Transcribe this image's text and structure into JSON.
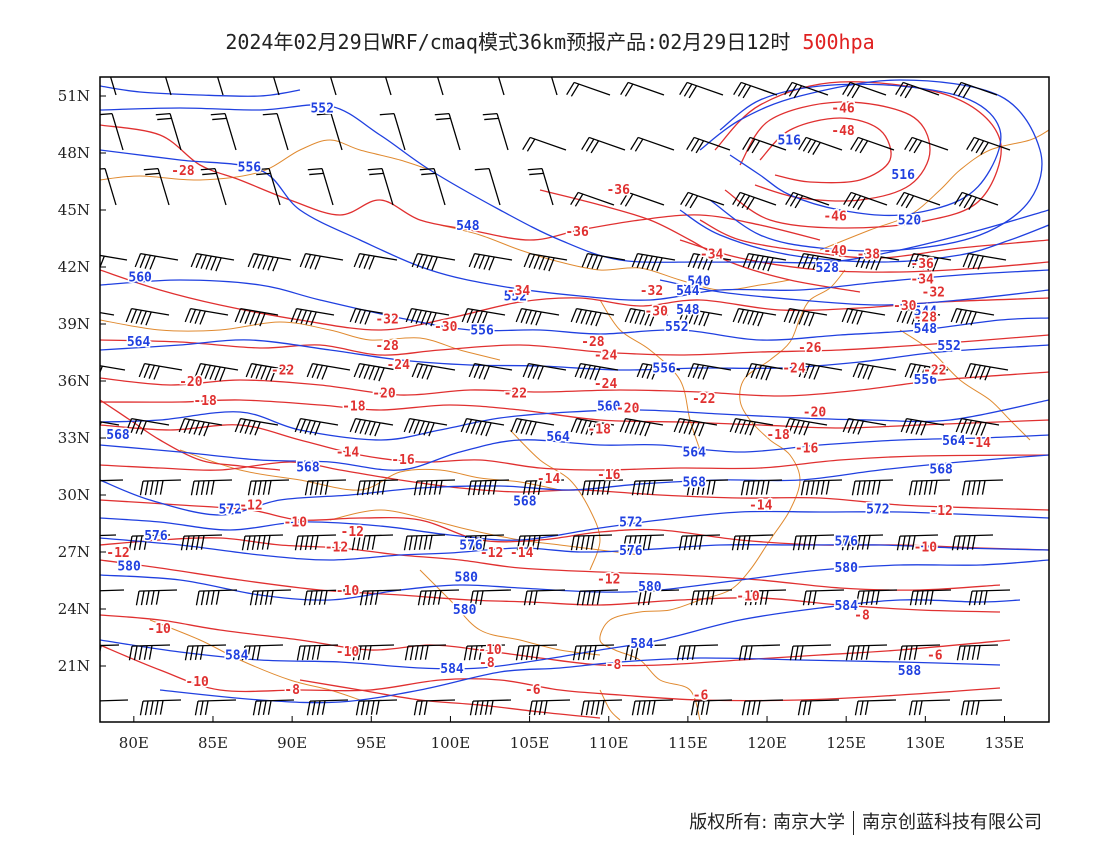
{
  "title": {
    "main": "2024年02月29日WRF/cmaq模式36km预报产品:02月29日12时",
    "level": "500hpa"
  },
  "colors": {
    "temperature_contour": "#e03030",
    "height_contour": "#2040e0",
    "coastline": "#e08a30",
    "wind_barb": "#000000"
  },
  "map": {
    "lon_ticks": [
      "80E",
      "85E",
      "90E",
      "95E",
      "100E",
      "105E",
      "110E",
      "115E",
      "120E",
      "125E",
      "130E",
      "135E"
    ],
    "lat_ticks": [
      "51N",
      "48N",
      "45N",
      "42N",
      "39N",
      "36N",
      "33N",
      "30N",
      "27N",
      "24N",
      "21N"
    ]
  },
  "height_labels": [
    {
      "text": "552",
      "lon": 91.9,
      "lat": 50.4
    },
    {
      "text": "556",
      "lon": 87.3,
      "lat": 47.3
    },
    {
      "text": "548",
      "lon": 101.1,
      "lat": 44.2
    },
    {
      "text": "560",
      "lon": 80.4,
      "lat": 41.5
    },
    {
      "text": "552",
      "lon": 104.1,
      "lat": 40.5
    },
    {
      "text": "556",
      "lon": 102.0,
      "lat": 38.7
    },
    {
      "text": "564",
      "lon": 80.3,
      "lat": 38.1
    },
    {
      "text": "516",
      "lon": 121.4,
      "lat": 48.7
    },
    {
      "text": "516",
      "lon": 128.6,
      "lat": 46.9
    },
    {
      "text": "520",
      "lon": 129.0,
      "lat": 44.5
    },
    {
      "text": "528",
      "lon": 123.8,
      "lat": 42.0
    },
    {
      "text": "540",
      "lon": 115.7,
      "lat": 41.3
    },
    {
      "text": "544",
      "lon": 115.0,
      "lat": 40.8
    },
    {
      "text": "548",
      "lon": 115.0,
      "lat": 39.8
    },
    {
      "text": "552",
      "lon": 114.3,
      "lat": 38.9
    },
    {
      "text": "544",
      "lon": 130.0,
      "lat": 39.7
    },
    {
      "text": "548",
      "lon": 130.0,
      "lat": 38.8
    },
    {
      "text": "552",
      "lon": 131.5,
      "lat": 37.9
    },
    {
      "text": "556",
      "lon": 113.5,
      "lat": 36.7
    },
    {
      "text": "556",
      "lon": 130.0,
      "lat": 36.1
    },
    {
      "text": "560",
      "lon": 110.0,
      "lat": 34.7
    },
    {
      "text": "564",
      "lon": 106.8,
      "lat": 33.1
    },
    {
      "text": "564",
      "lon": 115.4,
      "lat": 32.3
    },
    {
      "text": "564",
      "lon": 131.8,
      "lat": 32.9
    },
    {
      "text": "568",
      "lon": 79.0,
      "lat": 33.2
    },
    {
      "text": "568",
      "lon": 91.0,
      "lat": 31.5
    },
    {
      "text": "568",
      "lon": 115.4,
      "lat": 30.7
    },
    {
      "text": "568",
      "lon": 131.0,
      "lat": 31.4
    },
    {
      "text": "568",
      "lon": 104.7,
      "lat": 29.7
    },
    {
      "text": "572",
      "lon": 86.1,
      "lat": 29.3
    },
    {
      "text": "572",
      "lon": 111.4,
      "lat": 28.6
    },
    {
      "text": "572",
      "lon": 127.0,
      "lat": 29.3
    },
    {
      "text": "576",
      "lon": 81.4,
      "lat": 27.9
    },
    {
      "text": "576",
      "lon": 101.3,
      "lat": 27.4
    },
    {
      "text": "576",
      "lon": 111.4,
      "lat": 27.1
    },
    {
      "text": "576",
      "lon": 125.0,
      "lat": 27.6
    },
    {
      "text": "580",
      "lon": 79.7,
      "lat": 26.3
    },
    {
      "text": "580",
      "lon": 101.0,
      "lat": 25.7
    },
    {
      "text": "580",
      "lon": 112.6,
      "lat": 25.2
    },
    {
      "text": "580",
      "lon": 125.0,
      "lat": 26.2
    },
    {
      "text": "580",
      "lon": 100.9,
      "lat": 24.0
    },
    {
      "text": "584",
      "lon": 112.1,
      "lat": 22.2
    },
    {
      "text": "584",
      "lon": 86.5,
      "lat": 21.6
    },
    {
      "text": "584",
      "lon": 100.1,
      "lat": 20.9
    },
    {
      "text": "584",
      "lon": 125.0,
      "lat": 24.2
    },
    {
      "text": "588",
      "lon": 129.0,
      "lat": 20.8
    }
  ],
  "temperature_labels": [
    {
      "text": "-28",
      "lon": 83.1,
      "lat": 47.1
    },
    {
      "text": "-36",
      "lon": 110.6,
      "lat": 46.1
    },
    {
      "text": "-36",
      "lon": 108.0,
      "lat": 43.9
    },
    {
      "text": "-46",
      "lon": 124.8,
      "lat": 50.4
    },
    {
      "text": "-48",
      "lon": 124.8,
      "lat": 49.2
    },
    {
      "text": "-46",
      "lon": 124.3,
      "lat": 44.7
    },
    {
      "text": "-40",
      "lon": 124.3,
      "lat": 42.9
    },
    {
      "text": "-38",
      "lon": 126.4,
      "lat": 42.7
    },
    {
      "text": "-36",
      "lon": 129.8,
      "lat": 42.2
    },
    {
      "text": "-34",
      "lon": 129.8,
      "lat": 41.4
    },
    {
      "text": "-32",
      "lon": 130.5,
      "lat": 40.7
    },
    {
      "text": "-30",
      "lon": 128.7,
      "lat": 40.0
    },
    {
      "text": "-28",
      "lon": 130.0,
      "lat": 39.4
    },
    {
      "text": "-34",
      "lon": 116.5,
      "lat": 42.7
    },
    {
      "text": "-32",
      "lon": 112.7,
      "lat": 40.8
    },
    {
      "text": "-34",
      "lon": 104.3,
      "lat": 40.8
    },
    {
      "text": "-30",
      "lon": 113.0,
      "lat": 39.7
    },
    {
      "text": "-32",
      "lon": 96.0,
      "lat": 39.3
    },
    {
      "text": "-30",
      "lon": 99.7,
      "lat": 38.9
    },
    {
      "text": "-28",
      "lon": 96.0,
      "lat": 37.9
    },
    {
      "text": "-28",
      "lon": 109.0,
      "lat": 38.1
    },
    {
      "text": "-26",
      "lon": 122.7,
      "lat": 37.8
    },
    {
      "text": "-24",
      "lon": 109.8,
      "lat": 37.4
    },
    {
      "text": "-24",
      "lon": 96.7,
      "lat": 36.9
    },
    {
      "text": "-24",
      "lon": 109.8,
      "lat": 35.9
    },
    {
      "text": "-24",
      "lon": 121.7,
      "lat": 36.7
    },
    {
      "text": "-22",
      "lon": 89.4,
      "lat": 36.6
    },
    {
      "text": "-22",
      "lon": 104.1,
      "lat": 35.4
    },
    {
      "text": "-22",
      "lon": 116.0,
      "lat": 35.1
    },
    {
      "text": "-22",
      "lon": 130.6,
      "lat": 36.6
    },
    {
      "text": "-20",
      "lon": 83.6,
      "lat": 36.0
    },
    {
      "text": "-20",
      "lon": 95.8,
      "lat": 35.4
    },
    {
      "text": "-20",
      "lon": 111.2,
      "lat": 34.6
    },
    {
      "text": "-20",
      "lon": 123.0,
      "lat": 34.4
    },
    {
      "text": "-18",
      "lon": 84.5,
      "lat": 35.0
    },
    {
      "text": "-18",
      "lon": 93.9,
      "lat": 34.7
    },
    {
      "text": "-18",
      "lon": 109.4,
      "lat": 33.5
    },
    {
      "text": "-18",
      "lon": 120.7,
      "lat": 33.2
    },
    {
      "text": "-16",
      "lon": 122.5,
      "lat": 32.5
    },
    {
      "text": "-16",
      "lon": 97.0,
      "lat": 31.9
    },
    {
      "text": "-16",
      "lon": 110.0,
      "lat": 31.1
    },
    {
      "text": "-14",
      "lon": 93.5,
      "lat": 32.3
    },
    {
      "text": "-14",
      "lon": 106.2,
      "lat": 30.9
    },
    {
      "text": "-14",
      "lon": 119.6,
      "lat": 29.5
    },
    {
      "text": "-14",
      "lon": 133.4,
      "lat": 32.8
    },
    {
      "text": "-12",
      "lon": 87.4,
      "lat": 29.5
    },
    {
      "text": "-12",
      "lon": 93.8,
      "lat": 28.1
    },
    {
      "text": "-12",
      "lon": 92.8,
      "lat": 27.3
    },
    {
      "text": "-12",
      "lon": 102.6,
      "lat": 27.0
    },
    {
      "text": "-14",
      "lon": 104.5,
      "lat": 27.0
    },
    {
      "text": "-12",
      "lon": 131.0,
      "lat": 29.2
    },
    {
      "text": "-12",
      "lon": 79.0,
      "lat": 27.0
    },
    {
      "text": "-12",
      "lon": 110.0,
      "lat": 25.6
    },
    {
      "text": "-10",
      "lon": 90.2,
      "lat": 28.6
    },
    {
      "text": "-10",
      "lon": 93.5,
      "lat": 25.0
    },
    {
      "text": "-10",
      "lon": 118.8,
      "lat": 24.7
    },
    {
      "text": "-10",
      "lon": 81.6,
      "lat": 23.0
    },
    {
      "text": "-10",
      "lon": 93.5,
      "lat": 21.8
    },
    {
      "text": "-10",
      "lon": 102.5,
      "lat": 21.9
    },
    {
      "text": "-10",
      "lon": 84.0,
      "lat": 20.2
    },
    {
      "text": "-10",
      "lon": 130.0,
      "lat": 27.3
    },
    {
      "text": "-8",
      "lon": 102.3,
      "lat": 21.2
    },
    {
      "text": "-8",
      "lon": 90.0,
      "lat": 19.8
    },
    {
      "text": "-8",
      "lon": 110.3,
      "lat": 21.1
    },
    {
      "text": "-8",
      "lon": 126.0,
      "lat": 23.7
    },
    {
      "text": "-6",
      "lon": 105.2,
      "lat": 19.8
    },
    {
      "text": "-6",
      "lon": 115.8,
      "lat": 19.5
    },
    {
      "text": "-6",
      "lon": 130.6,
      "lat": 21.6
    }
  ],
  "footer": {
    "copyright": "版权所有: 南京大学",
    "partner": "南京创蓝科技有限公司"
  }
}
